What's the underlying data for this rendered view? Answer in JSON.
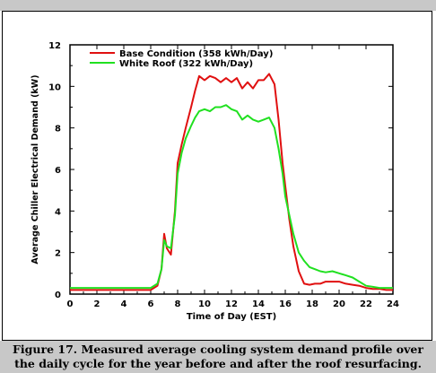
{
  "figure": {
    "caption_line1": "Figure 17.  Measured average cooling system demand profile over",
    "caption_line2": "the daily cycle for the year before and after the roof resurfacing."
  },
  "chart_data": {
    "type": "line",
    "title": "",
    "xlabel": "Time of Day (EST)",
    "ylabel": "Average Chiller Electrical Demand (kW)",
    "xlim": [
      0,
      24
    ],
    "ylim": [
      0,
      12
    ],
    "xticks": [
      0,
      2,
      4,
      6,
      8,
      10,
      12,
      14,
      16,
      18,
      20,
      22,
      24
    ],
    "yticks": [
      0,
      2,
      4,
      6,
      8,
      10,
      12
    ],
    "grid": false,
    "legend_position": "top-left",
    "series": [
      {
        "name": "Base Condition (358 kWh/Day)",
        "color": "#e01010",
        "x": [
          0,
          1,
          2,
          3,
          4,
          5,
          6,
          6.5,
          6.8,
          7.0,
          7.2,
          7.5,
          7.8,
          8.0,
          8.3,
          8.6,
          9.0,
          9.3,
          9.6,
          10.0,
          10.4,
          10.8,
          11.2,
          11.6,
          12.0,
          12.4,
          12.8,
          13.2,
          13.6,
          14.0,
          14.4,
          14.8,
          15.2,
          15.5,
          15.8,
          16.0,
          16.3,
          16.6,
          17.0,
          17.4,
          17.8,
          18.2,
          18.6,
          19.0,
          19.5,
          20.0,
          20.5,
          21.0,
          21.5,
          22.0,
          22.5,
          23.0,
          23.5,
          24
        ],
        "y": [
          0.2,
          0.2,
          0.2,
          0.2,
          0.2,
          0.2,
          0.2,
          0.4,
          1.2,
          2.9,
          2.2,
          1.9,
          4.0,
          6.3,
          7.2,
          8.0,
          9.0,
          9.8,
          10.5,
          10.3,
          10.5,
          10.4,
          10.2,
          10.4,
          10.2,
          10.4,
          9.9,
          10.2,
          9.9,
          10.3,
          10.3,
          10.6,
          10.1,
          8.4,
          6.3,
          5.2,
          3.6,
          2.3,
          1.1,
          0.5,
          0.45,
          0.5,
          0.5,
          0.6,
          0.6,
          0.6,
          0.5,
          0.45,
          0.4,
          0.3,
          0.25,
          0.25,
          0.2,
          0.2
        ]
      },
      {
        "name": "White Roof (322 kWh/Day)",
        "color": "#20e020",
        "x": [
          0,
          1,
          2,
          3,
          4,
          5,
          6,
          6.5,
          6.8,
          7.0,
          7.2,
          7.5,
          7.8,
          8.0,
          8.3,
          8.6,
          9.0,
          9.3,
          9.6,
          10.0,
          10.4,
          10.8,
          11.2,
          11.6,
          12.0,
          12.4,
          12.8,
          13.2,
          13.6,
          14.0,
          14.4,
          14.8,
          15.2,
          15.5,
          15.8,
          16.0,
          16.3,
          16.6,
          17.0,
          17.4,
          17.8,
          18.2,
          18.6,
          19.0,
          19.5,
          20.0,
          20.5,
          21.0,
          21.5,
          22.0,
          22.5,
          23.0,
          23.5,
          24
        ],
        "y": [
          0.3,
          0.3,
          0.3,
          0.3,
          0.3,
          0.3,
          0.3,
          0.5,
          1.2,
          2.6,
          2.3,
          2.2,
          3.8,
          5.8,
          6.8,
          7.5,
          8.1,
          8.5,
          8.8,
          8.9,
          8.8,
          9.0,
          9.0,
          9.1,
          8.9,
          8.8,
          8.4,
          8.6,
          8.4,
          8.3,
          8.4,
          8.5,
          8.0,
          7.0,
          5.8,
          4.7,
          3.8,
          2.9,
          2.0,
          1.6,
          1.3,
          1.2,
          1.1,
          1.05,
          1.1,
          1.0,
          0.9,
          0.8,
          0.6,
          0.4,
          0.35,
          0.3,
          0.3,
          0.3
        ]
      }
    ]
  }
}
